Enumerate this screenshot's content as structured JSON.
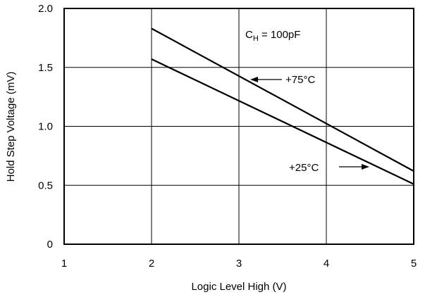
{
  "chart_data": {
    "type": "line",
    "xlabel": "Logic Level High (V)",
    "ylabel": "Hold Step Voltage (mV)",
    "xlim": [
      1,
      5
    ],
    "ylim": [
      0,
      2.0
    ],
    "x_ticks": [
      "1",
      "2",
      "3",
      "4",
      "5"
    ],
    "y_ticks": [
      "0",
      "0.5",
      "1.0",
      "1.5",
      "2.0"
    ],
    "grid": true,
    "series": [
      {
        "name": "+75°C",
        "x": [
          2,
          5
        ],
        "y": [
          1.83,
          0.62
        ]
      },
      {
        "name": "+25°C",
        "x": [
          2,
          5
        ],
        "y": [
          1.57,
          0.51
        ]
      }
    ],
    "annotation": {
      "main": "C",
      "sub": "H",
      "rest": " = 100pF"
    },
    "colors": {
      "line": "#000000",
      "background": "#ffffff"
    }
  }
}
